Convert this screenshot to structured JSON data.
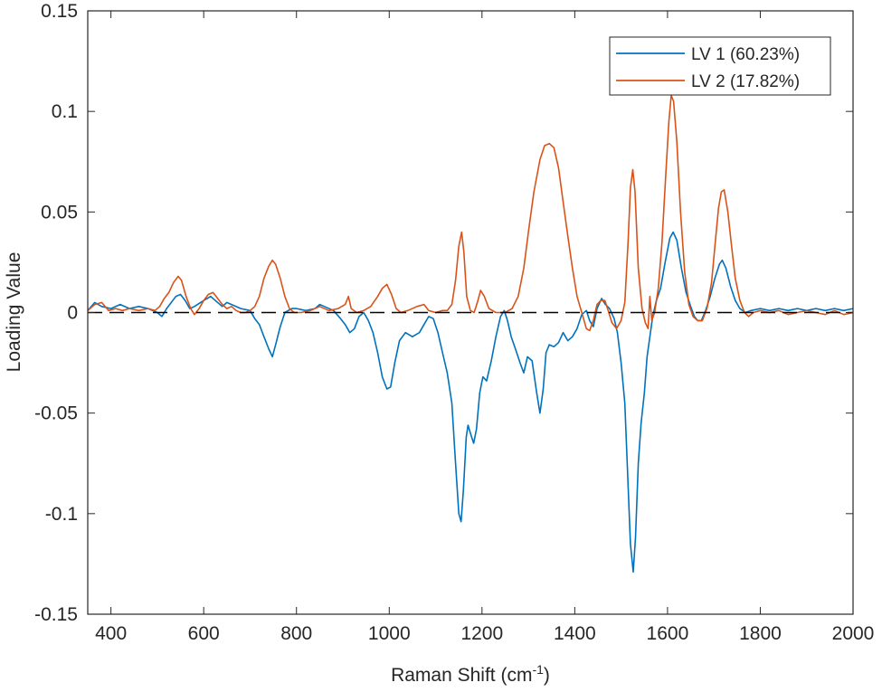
{
  "chart_data": {
    "type": "line",
    "title": "",
    "xlabel": "Raman Shift (cm",
    "xlabel_sup": "-1",
    "xlabel_close": ")",
    "ylabel": "Loading Value",
    "xlim": [
      350,
      2000
    ],
    "ylim": [
      -0.15,
      0.15
    ],
    "x_ticks": [
      400,
      600,
      800,
      1000,
      1200,
      1400,
      1600,
      1800,
      2000
    ],
    "x_tick_labels": [
      "400",
      "600",
      "800",
      "1000",
      "1200",
      "1400",
      "1600",
      "1800",
      "2000"
    ],
    "y_ticks": [
      -0.15,
      -0.1,
      -0.05,
      0,
      0.05,
      0.1,
      0.15
    ],
    "y_tick_labels": [
      "-0.15",
      "-0.1",
      "-0.05",
      "0",
      "0.05",
      "0.1",
      "0.15"
    ],
    "grid": false,
    "legend_position": "top-right",
    "zero_line": {
      "y": 0,
      "style": "dashed",
      "color": "#000000"
    },
    "series": [
      {
        "name": "LV 1 (60.23%)",
        "color": "#0072BD",
        "points": [
          [
            350,
            0.001
          ],
          [
            365,
            0.005
          ],
          [
            380,
            0.003
          ],
          [
            400,
            0.002
          ],
          [
            420,
            0.004
          ],
          [
            440,
            0.002
          ],
          [
            460,
            0.003
          ],
          [
            480,
            0.002
          ],
          [
            500,
            0.0
          ],
          [
            510,
            -0.002
          ],
          [
            520,
            0.002
          ],
          [
            540,
            0.008
          ],
          [
            550,
            0.009
          ],
          [
            560,
            0.006
          ],
          [
            570,
            0.002
          ],
          [
            580,
            0.003
          ],
          [
            600,
            0.006
          ],
          [
            615,
            0.008
          ],
          [
            625,
            0.006
          ],
          [
            640,
            0.003
          ],
          [
            650,
            0.005
          ],
          [
            660,
            0.004
          ],
          [
            680,
            0.002
          ],
          [
            700,
            0.001
          ],
          [
            710,
            -0.003
          ],
          [
            720,
            -0.006
          ],
          [
            730,
            -0.012
          ],
          [
            740,
            -0.018
          ],
          [
            748,
            -0.022
          ],
          [
            755,
            -0.016
          ],
          [
            765,
            -0.007
          ],
          [
            775,
            0.0
          ],
          [
            790,
            0.002
          ],
          [
            800,
            0.002
          ],
          [
            820,
            0.001
          ],
          [
            840,
            0.002
          ],
          [
            850,
            0.004
          ],
          [
            860,
            0.003
          ],
          [
            880,
            0.001
          ],
          [
            895,
            -0.003
          ],
          [
            905,
            -0.006
          ],
          [
            915,
            -0.01
          ],
          [
            925,
            -0.008
          ],
          [
            935,
            -0.002
          ],
          [
            945,
            0.0
          ],
          [
            955,
            -0.004
          ],
          [
            965,
            -0.01
          ],
          [
            975,
            -0.02
          ],
          [
            985,
            -0.032
          ],
          [
            995,
            -0.038
          ],
          [
            1003,
            -0.037
          ],
          [
            1012,
            -0.025
          ],
          [
            1022,
            -0.014
          ],
          [
            1035,
            -0.01
          ],
          [
            1050,
            -0.012
          ],
          [
            1065,
            -0.01
          ],
          [
            1075,
            -0.006
          ],
          [
            1085,
            -0.002
          ],
          [
            1095,
            -0.003
          ],
          [
            1105,
            -0.01
          ],
          [
            1115,
            -0.02
          ],
          [
            1125,
            -0.03
          ],
          [
            1135,
            -0.045
          ],
          [
            1143,
            -0.075
          ],
          [
            1150,
            -0.1
          ],
          [
            1155,
            -0.104
          ],
          [
            1160,
            -0.088
          ],
          [
            1166,
            -0.062
          ],
          [
            1170,
            -0.056
          ],
          [
            1175,
            -0.06
          ],
          [
            1182,
            -0.065
          ],
          [
            1188,
            -0.058
          ],
          [
            1195,
            -0.04
          ],
          [
            1202,
            -0.032
          ],
          [
            1210,
            -0.034
          ],
          [
            1220,
            -0.024
          ],
          [
            1230,
            -0.012
          ],
          [
            1240,
            -0.002
          ],
          [
            1248,
            0.001
          ],
          [
            1255,
            -0.004
          ],
          [
            1263,
            -0.012
          ],
          [
            1272,
            -0.018
          ],
          [
            1282,
            -0.025
          ],
          [
            1290,
            -0.03
          ],
          [
            1298,
            -0.022
          ],
          [
            1308,
            -0.024
          ],
          [
            1318,
            -0.04
          ],
          [
            1325,
            -0.05
          ],
          [
            1332,
            -0.038
          ],
          [
            1338,
            -0.02
          ],
          [
            1345,
            -0.016
          ],
          [
            1355,
            -0.017
          ],
          [
            1365,
            -0.015
          ],
          [
            1375,
            -0.01
          ],
          [
            1385,
            -0.014
          ],
          [
            1395,
            -0.012
          ],
          [
            1405,
            -0.008
          ],
          [
            1415,
            -0.001
          ],
          [
            1425,
            0.001
          ],
          [
            1432,
            -0.004
          ],
          [
            1440,
            -0.007
          ],
          [
            1448,
            0.002
          ],
          [
            1458,
            0.007
          ],
          [
            1466,
            0.004
          ],
          [
            1475,
            0.002
          ],
          [
            1485,
            -0.003
          ],
          [
            1492,
            -0.01
          ],
          [
            1500,
            -0.025
          ],
          [
            1508,
            -0.045
          ],
          [
            1514,
            -0.08
          ],
          [
            1520,
            -0.115
          ],
          [
            1526,
            -0.129
          ],
          [
            1531,
            -0.112
          ],
          [
            1537,
            -0.075
          ],
          [
            1543,
            -0.055
          ],
          [
            1550,
            -0.04
          ],
          [
            1556,
            -0.022
          ],
          [
            1562,
            -0.012
          ],
          [
            1568,
            -0.002
          ],
          [
            1576,
            0.006
          ],
          [
            1585,
            0.012
          ],
          [
            1595,
            0.025
          ],
          [
            1605,
            0.037
          ],
          [
            1612,
            0.04
          ],
          [
            1620,
            0.036
          ],
          [
            1630,
            0.022
          ],
          [
            1640,
            0.01
          ],
          [
            1650,
            0.003
          ],
          [
            1658,
            -0.002
          ],
          [
            1665,
            -0.004
          ],
          [
            1673,
            -0.004
          ],
          [
            1682,
            0.001
          ],
          [
            1692,
            0.008
          ],
          [
            1702,
            0.017
          ],
          [
            1712,
            0.024
          ],
          [
            1718,
            0.026
          ],
          [
            1726,
            0.022
          ],
          [
            1736,
            0.013
          ],
          [
            1746,
            0.006
          ],
          [
            1756,
            0.002
          ],
          [
            1768,
            0.0
          ],
          [
            1780,
            0.001
          ],
          [
            1800,
            0.002
          ],
          [
            1820,
            0.001
          ],
          [
            1840,
            0.002
          ],
          [
            1860,
            0.001
          ],
          [
            1880,
            0.002
          ],
          [
            1900,
            0.001
          ],
          [
            1920,
            0.002
          ],
          [
            1940,
            0.001
          ],
          [
            1960,
            0.002
          ],
          [
            1980,
            0.001
          ],
          [
            2000,
            0.002
          ]
        ]
      },
      {
        "name": "LV 2 (17.82%)",
        "color": "#D95319",
        "points": [
          [
            350,
            0.001
          ],
          [
            365,
            0.004
          ],
          [
            380,
            0.005
          ],
          [
            395,
            0.001
          ],
          [
            410,
            0.002
          ],
          [
            425,
            0.001
          ],
          [
            440,
            0.002
          ],
          [
            460,
            0.001
          ],
          [
            480,
            0.002
          ],
          [
            495,
            0.001
          ],
          [
            505,
            0.003
          ],
          [
            515,
            0.007
          ],
          [
            525,
            0.01
          ],
          [
            535,
            0.015
          ],
          [
            545,
            0.018
          ],
          [
            552,
            0.016
          ],
          [
            562,
            0.008
          ],
          [
            572,
            0.002
          ],
          [
            580,
            -0.001
          ],
          [
            590,
            0.002
          ],
          [
            600,
            0.006
          ],
          [
            610,
            0.009
          ],
          [
            620,
            0.01
          ],
          [
            630,
            0.007
          ],
          [
            640,
            0.004
          ],
          [
            650,
            0.002
          ],
          [
            660,
            0.003
          ],
          [
            670,
            0.001
          ],
          [
            680,
            0.0
          ],
          [
            690,
            0.0
          ],
          [
            700,
            0.001
          ],
          [
            710,
            0.003
          ],
          [
            720,
            0.008
          ],
          [
            730,
            0.017
          ],
          [
            740,
            0.023
          ],
          [
            748,
            0.026
          ],
          [
            755,
            0.024
          ],
          [
            765,
            0.017
          ],
          [
            775,
            0.008
          ],
          [
            785,
            0.002
          ],
          [
            795,
            0.0
          ],
          [
            810,
            0.0
          ],
          [
            830,
            0.001
          ],
          [
            850,
            0.003
          ],
          [
            870,
            0.001
          ],
          [
            890,
            0.002
          ],
          [
            905,
            0.004
          ],
          [
            912,
            0.008
          ],
          [
            918,
            0.002
          ],
          [
            930,
            0.0
          ],
          [
            945,
            0.001
          ],
          [
            960,
            0.003
          ],
          [
            975,
            0.008
          ],
          [
            985,
            0.012
          ],
          [
            995,
            0.014
          ],
          [
            1005,
            0.009
          ],
          [
            1015,
            0.002
          ],
          [
            1025,
            0.0
          ],
          [
            1040,
            0.001
          ],
          [
            1060,
            0.003
          ],
          [
            1075,
            0.004
          ],
          [
            1085,
            0.001
          ],
          [
            1100,
            0.0
          ],
          [
            1115,
            0.001
          ],
          [
            1125,
            0.001
          ],
          [
            1135,
            0.004
          ],
          [
            1143,
            0.016
          ],
          [
            1150,
            0.033
          ],
          [
            1156,
            0.04
          ],
          [
            1161,
            0.03
          ],
          [
            1167,
            0.008
          ],
          [
            1175,
            0.001
          ],
          [
            1183,
            0.0
          ],
          [
            1190,
            0.005
          ],
          [
            1197,
            0.011
          ],
          [
            1205,
            0.008
          ],
          [
            1215,
            0.002
          ],
          [
            1230,
            0.0
          ],
          [
            1250,
            0.0
          ],
          [
            1265,
            0.002
          ],
          [
            1278,
            0.008
          ],
          [
            1290,
            0.022
          ],
          [
            1300,
            0.04
          ],
          [
            1312,
            0.06
          ],
          [
            1325,
            0.076
          ],
          [
            1335,
            0.083
          ],
          [
            1345,
            0.084
          ],
          [
            1355,
            0.082
          ],
          [
            1365,
            0.072
          ],
          [
            1375,
            0.055
          ],
          [
            1385,
            0.038
          ],
          [
            1395,
            0.022
          ],
          [
            1405,
            0.008
          ],
          [
            1415,
            0.0
          ],
          [
            1425,
            -0.008
          ],
          [
            1432,
            -0.009
          ],
          [
            1440,
            -0.004
          ],
          [
            1448,
            0.004
          ],
          [
            1456,
            0.006
          ],
          [
            1465,
            0.006
          ],
          [
            1472,
            0.001
          ],
          [
            1480,
            -0.005
          ],
          [
            1490,
            -0.008
          ],
          [
            1500,
            -0.004
          ],
          [
            1508,
            0.005
          ],
          [
            1515,
            0.035
          ],
          [
            1520,
            0.062
          ],
          [
            1525,
            0.071
          ],
          [
            1530,
            0.06
          ],
          [
            1537,
            0.022
          ],
          [
            1545,
            0.002
          ],
          [
            1552,
            -0.005
          ],
          [
            1558,
            -0.008
          ],
          [
            1562,
            0.008
          ],
          [
            1566,
            -0.004
          ],
          [
            1572,
            0.0
          ],
          [
            1580,
            0.012
          ],
          [
            1588,
            0.035
          ],
          [
            1596,
            0.068
          ],
          [
            1603,
            0.095
          ],
          [
            1608,
            0.108
          ],
          [
            1613,
            0.105
          ],
          [
            1620,
            0.085
          ],
          [
            1628,
            0.05
          ],
          [
            1637,
            0.02
          ],
          [
            1646,
            0.004
          ],
          [
            1655,
            -0.002
          ],
          [
            1665,
            -0.004
          ],
          [
            1675,
            -0.004
          ],
          [
            1685,
            0.002
          ],
          [
            1695,
            0.015
          ],
          [
            1703,
            0.035
          ],
          [
            1710,
            0.052
          ],
          [
            1716,
            0.06
          ],
          [
            1722,
            0.061
          ],
          [
            1730,
            0.05
          ],
          [
            1738,
            0.033
          ],
          [
            1746,
            0.017
          ],
          [
            1756,
            0.006
          ],
          [
            1766,
            0.0
          ],
          [
            1775,
            -0.002
          ],
          [
            1785,
            0.0
          ],
          [
            1800,
            0.001
          ],
          [
            1820,
            0.0
          ],
          [
            1840,
            0.001
          ],
          [
            1860,
            -0.001
          ],
          [
            1880,
            0.0
          ],
          [
            1900,
            0.001
          ],
          [
            1920,
            0.0
          ],
          [
            1940,
            -0.001
          ],
          [
            1960,
            0.001
          ],
          [
            1980,
            -0.001
          ],
          [
            2000,
            0.0
          ]
        ]
      }
    ]
  }
}
